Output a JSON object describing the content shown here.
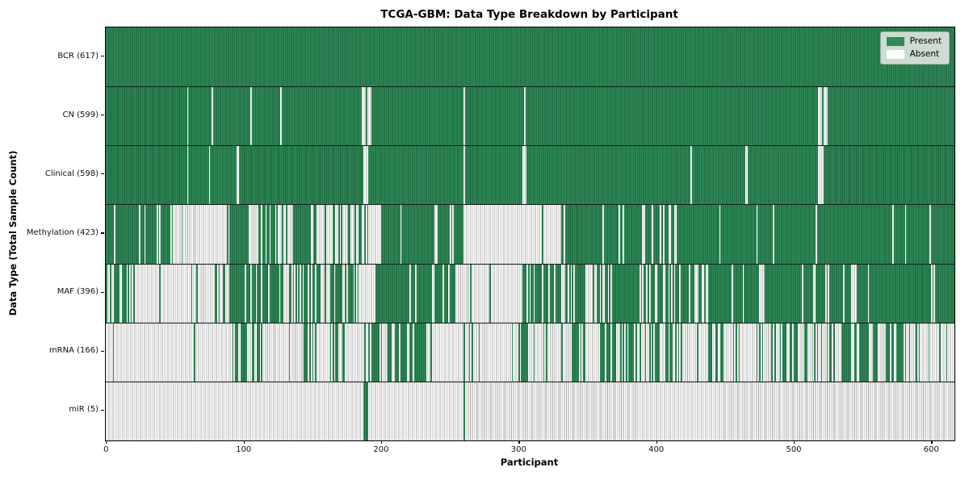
{
  "colors": {
    "present": "#2e8b57",
    "present_edge": "#1b5c38",
    "absent": "#ffffff",
    "absent_edge": "#a6a6a6",
    "row_divider": "#1a1a1a",
    "plot_border": "#000000",
    "legend_bg": "#eaecea",
    "legend_border": "#b0b0b0"
  },
  "chart_data": {
    "type": "heatmap",
    "title": "TCGA-GBM: Data Type Breakdown by Participant",
    "xlabel": "Participant",
    "ylabel": "Data Type (Total Sample Count)",
    "n_participants": 617,
    "x_range": [
      0,
      617
    ],
    "x_ticks": [
      0,
      100,
      200,
      300,
      400,
      500,
      600
    ],
    "legend_position": "upper right",
    "grid": false,
    "cell_states": {
      "present": 1,
      "absent": 0
    },
    "legend": [
      {
        "label": "Present",
        "state": "present",
        "color": "#2e8b57"
      },
      {
        "label": "Absent",
        "state": "absent",
        "color": "#ffffff"
      }
    ],
    "rows": [
      {
        "label": "BCR (617)",
        "name": "BCR",
        "total": 617,
        "segments": [
          [
            0,
            617,
            1
          ]
        ]
      },
      {
        "label": "CN (599)",
        "name": "CN",
        "total": 599,
        "segments": [
          [
            0,
            59,
            1
          ],
          [
            59,
            60,
            0
          ],
          [
            60,
            77,
            1
          ],
          [
            77,
            78,
            0
          ],
          [
            78,
            105,
            1
          ],
          [
            105,
            106,
            0
          ],
          [
            106,
            127,
            1
          ],
          [
            127,
            128,
            0
          ],
          [
            128,
            186,
            1
          ],
          [
            186,
            189,
            0
          ],
          [
            189,
            190,
            1
          ],
          [
            190,
            193,
            0
          ],
          [
            193,
            260,
            1
          ],
          [
            260,
            261,
            0
          ],
          [
            261,
            304,
            1
          ],
          [
            304,
            305,
            0
          ],
          [
            305,
            518,
            1
          ],
          [
            518,
            521,
            0
          ],
          [
            521,
            522,
            1
          ],
          [
            522,
            525,
            0
          ],
          [
            525,
            617,
            1
          ]
        ]
      },
      {
        "label": "Clinical (598)",
        "name": "Clinical",
        "total": 598,
        "segments": [
          [
            0,
            59,
            1
          ],
          [
            59,
            60,
            0
          ],
          [
            60,
            75,
            1
          ],
          [
            75,
            76,
            0
          ],
          [
            76,
            95,
            1
          ],
          [
            95,
            97,
            0
          ],
          [
            97,
            187,
            1
          ],
          [
            187,
            191,
            0
          ],
          [
            191,
            260,
            1
          ],
          [
            260,
            261,
            0
          ],
          [
            261,
            303,
            1
          ],
          [
            303,
            306,
            0
          ],
          [
            306,
            425,
            1
          ],
          [
            425,
            426,
            0
          ],
          [
            426,
            465,
            1
          ],
          [
            465,
            467,
            0
          ],
          [
            467,
            518,
            1
          ],
          [
            518,
            522,
            0
          ],
          [
            522,
            617,
            1
          ]
        ]
      },
      {
        "label": "Methylation (423)",
        "name": "Methylation",
        "total": 423,
        "segments": [
          [
            0,
            57,
            0.7
          ],
          [
            57,
            90,
            0.13
          ],
          [
            90,
            104,
            1
          ],
          [
            104,
            111,
            0
          ],
          [
            111,
            125,
            0.75
          ],
          [
            125,
            137,
            0.15
          ],
          [
            137,
            149,
            1
          ],
          [
            149,
            183,
            0.33
          ],
          [
            183,
            191,
            0.6
          ],
          [
            191,
            200,
            0
          ],
          [
            200,
            260,
            0.88
          ],
          [
            260,
            317,
            0
          ],
          [
            317,
            318,
            1
          ],
          [
            318,
            331,
            0
          ],
          [
            331,
            413,
            0.86
          ],
          [
            413,
            415,
            0
          ],
          [
            415,
            617,
            0.97
          ]
        ]
      },
      {
        "label": "MAF (396)",
        "name": "MAF",
        "total": 396,
        "segments": [
          [
            0,
            22,
            0.4
          ],
          [
            22,
            71,
            0.04
          ],
          [
            71,
            91,
            0.3
          ],
          [
            91,
            123,
            0.7
          ],
          [
            123,
            175,
            0.55
          ],
          [
            175,
            187,
            0.6
          ],
          [
            187,
            196,
            0
          ],
          [
            196,
            254,
            0.88
          ],
          [
            254,
            302,
            0.02
          ],
          [
            302,
            330,
            0.7
          ],
          [
            330,
            359,
            0.5
          ],
          [
            359,
            393,
            0.85
          ],
          [
            393,
            408,
            0.55
          ],
          [
            408,
            424,
            0.85
          ],
          [
            424,
            438,
            0.3
          ],
          [
            438,
            475,
            0.92
          ],
          [
            475,
            479,
            0
          ],
          [
            479,
            514,
            0.94
          ],
          [
            514,
            516,
            0
          ],
          [
            516,
            542,
            0.9
          ],
          [
            542,
            545,
            0
          ],
          [
            545,
            555,
            0.6
          ],
          [
            555,
            617,
            0.95
          ]
        ]
      },
      {
        "label": "mRNA (166)",
        "name": "mRNA",
        "total": 166,
        "segments": [
          [
            0,
            24,
            0.08
          ],
          [
            24,
            91,
            0.02
          ],
          [
            91,
            119,
            0.45
          ],
          [
            119,
            143,
            0.12
          ],
          [
            143,
            175,
            0.35
          ],
          [
            175,
            187,
            0.1
          ],
          [
            187,
            202,
            0.8
          ],
          [
            202,
            210,
            0.3
          ],
          [
            210,
            238,
            0.7
          ],
          [
            238,
            262,
            0.05
          ],
          [
            262,
            300,
            0.1
          ],
          [
            300,
            307,
            0.7
          ],
          [
            307,
            339,
            0.08
          ],
          [
            339,
            350,
            0.7
          ],
          [
            350,
            359,
            0.1
          ],
          [
            359,
            387,
            0.5
          ],
          [
            387,
            410,
            0.25
          ],
          [
            410,
            438,
            0.2
          ],
          [
            438,
            448,
            0.6
          ],
          [
            448,
            467,
            0.18
          ],
          [
            467,
            485,
            0.3
          ],
          [
            485,
            503,
            0.6
          ],
          [
            503,
            520,
            0.3
          ],
          [
            520,
            530,
            0.65
          ],
          [
            530,
            550,
            0.4
          ],
          [
            550,
            556,
            0.8
          ],
          [
            556,
            564,
            0.2
          ],
          [
            564,
            575,
            0.5
          ],
          [
            575,
            581,
            0.7
          ],
          [
            581,
            596,
            0.35
          ],
          [
            596,
            617,
            0.1
          ]
        ]
      },
      {
        "label": "miR (5)",
        "name": "miR",
        "total": 5,
        "segments": [
          [
            0,
            187,
            0
          ],
          [
            187,
            191,
            1
          ],
          [
            191,
            260,
            0
          ],
          [
            260,
            261,
            1
          ],
          [
            261,
            617,
            0
          ]
        ]
      }
    ]
  }
}
